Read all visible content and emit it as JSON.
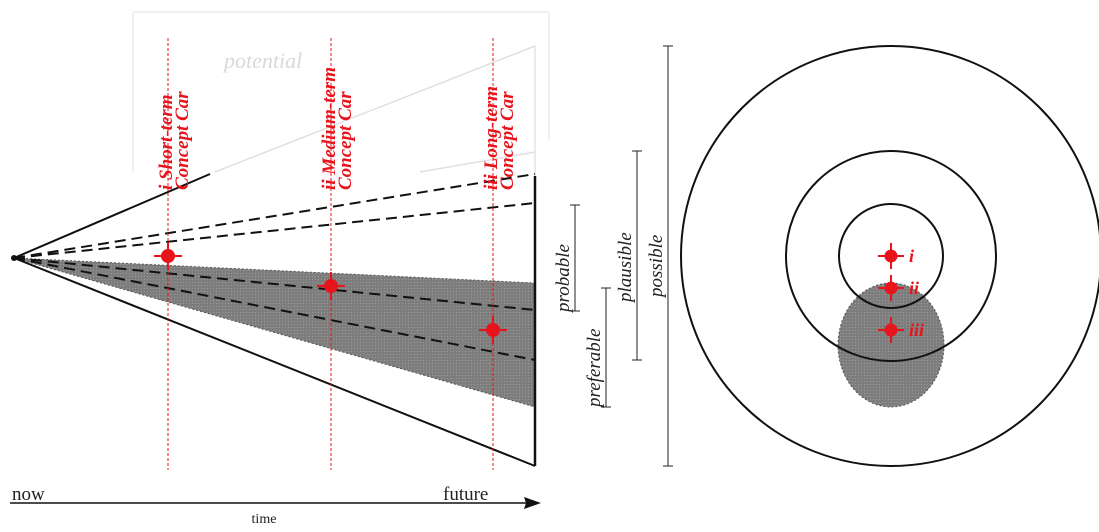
{
  "colors": {
    "accent": "#e8141b",
    "shade": "#808080",
    "line": "#111111"
  },
  "cone": {
    "ghost_label": "potential",
    "concepts": [
      {
        "line1": "i Short-term",
        "line2": "Concept Car"
      },
      {
        "line1": "ii Medium-term",
        "line2": "Concept Car"
      },
      {
        "line1": "iii Long-term",
        "line2": "Concept Car"
      }
    ],
    "now_label": "now",
    "future_label": "future",
    "time_label": "time"
  },
  "scope": {
    "probable": "probable",
    "preferable": "preferable",
    "plausible": "plausible",
    "possible": "possible"
  },
  "rings": {
    "markers": [
      "i",
      "ii",
      "iii"
    ]
  }
}
